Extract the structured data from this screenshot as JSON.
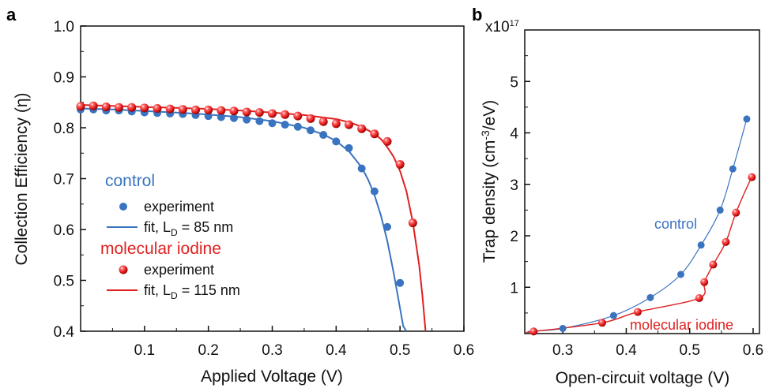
{
  "colors": {
    "control": "#3a73c0",
    "iodine": "#e02020",
    "axis": "#111111"
  },
  "chart_data": [
    {
      "panel": "a",
      "type": "scatter",
      "xlabel": "Applied Voltage (V)",
      "ylabel": "Collection Efficiency (η)",
      "xlim": [
        0,
        0.6
      ],
      "ylim": [
        0.4,
        1.0
      ],
      "xticks": [
        "0.1",
        "0.2",
        "0.3",
        "0.4",
        "0.5",
        "0.6"
      ],
      "yticks": [
        "0.4",
        "0.5",
        "0.6",
        "0.7",
        "0.8",
        "0.9",
        "1.0"
      ],
      "legend": {
        "control_title": "control",
        "iodine_title": "molecular iodine",
        "experiment_label": "experiment",
        "fit_prefix": "fit, L",
        "fit_subscript": "D",
        "control_fit_value": " = 85 nm",
        "iodine_fit_value": " = 115 nm"
      },
      "series": [
        {
          "name": "control experiment",
          "x": [
            0.0,
            0.02,
            0.04,
            0.06,
            0.08,
            0.1,
            0.12,
            0.14,
            0.16,
            0.18,
            0.2,
            0.22,
            0.24,
            0.26,
            0.28,
            0.3,
            0.32,
            0.34,
            0.36,
            0.38,
            0.4,
            0.42,
            0.44,
            0.46,
            0.48,
            0.5
          ],
          "y": [
            0.836,
            0.836,
            0.834,
            0.834,
            0.832,
            0.83,
            0.829,
            0.828,
            0.827,
            0.825,
            0.823,
            0.821,
            0.819,
            0.816,
            0.813,
            0.809,
            0.806,
            0.802,
            0.795,
            0.786,
            0.773,
            0.76,
            0.72,
            0.675,
            0.605,
            0.495
          ]
        },
        {
          "name": "molecular iodine experiment",
          "x": [
            0.0,
            0.02,
            0.04,
            0.06,
            0.08,
            0.1,
            0.12,
            0.14,
            0.16,
            0.18,
            0.2,
            0.22,
            0.24,
            0.26,
            0.28,
            0.3,
            0.32,
            0.34,
            0.36,
            0.38,
            0.4,
            0.42,
            0.44,
            0.46,
            0.48,
            0.5,
            0.52
          ],
          "y": [
            0.842,
            0.843,
            0.841,
            0.84,
            0.84,
            0.839,
            0.838,
            0.837,
            0.836,
            0.835,
            0.835,
            0.834,
            0.833,
            0.831,
            0.83,
            0.828,
            0.826,
            0.823,
            0.818,
            0.812,
            0.808,
            0.806,
            0.798,
            0.788,
            0.773,
            0.728,
            0.613
          ]
        },
        {
          "name": "fit, LD = 85 nm",
          "x": [
            0.0,
            0.05,
            0.1,
            0.15,
            0.2,
            0.25,
            0.3,
            0.35,
            0.38,
            0.4,
            0.42,
            0.44,
            0.45,
            0.46,
            0.47,
            0.48,
            0.49,
            0.5,
            0.505,
            0.51
          ],
          "y": [
            0.838,
            0.836,
            0.833,
            0.83,
            0.826,
            0.821,
            0.813,
            0.8,
            0.787,
            0.774,
            0.754,
            0.722,
            0.698,
            0.668,
            0.628,
            0.578,
            0.515,
            0.445,
            0.41,
            0.4
          ]
        },
        {
          "name": "fit, LD = 115 nm",
          "x": [
            0.0,
            0.05,
            0.1,
            0.15,
            0.2,
            0.25,
            0.3,
            0.35,
            0.4,
            0.42,
            0.44,
            0.46,
            0.47,
            0.48,
            0.49,
            0.5,
            0.51,
            0.52,
            0.53,
            0.535,
            0.54
          ],
          "y": [
            0.845,
            0.843,
            0.841,
            0.839,
            0.837,
            0.834,
            0.83,
            0.825,
            0.817,
            0.811,
            0.802,
            0.788,
            0.778,
            0.762,
            0.743,
            0.715,
            0.675,
            0.615,
            0.53,
            0.47,
            0.4
          ]
        }
      ]
    },
    {
      "panel": "b",
      "type": "scatter",
      "xlabel": "Open-circuit voltage (V)",
      "ylabel": "Trap density (cm⁻³/eV)",
      "ylabel_parts": {
        "pre": "Trap density (cm",
        "sup": "-3",
        "post": "/eV)"
      },
      "multiplier": {
        "base": "x10",
        "exp": "17"
      },
      "xlim": [
        0.24,
        0.61
      ],
      "ylim": [
        0.1,
        6.0
      ],
      "xticks": [
        "0.3",
        "0.4",
        "0.5",
        "0.6"
      ],
      "yticks": [
        "1",
        "2",
        "3",
        "4",
        "5"
      ],
      "annotations": {
        "control": "control",
        "iodine": "molecular iodine"
      },
      "series": [
        {
          "name": "control",
          "x": [
            0.254,
            0.3,
            0.38,
            0.438,
            0.486,
            0.518,
            0.548,
            0.568,
            0.59
          ],
          "y": [
            0.15,
            0.2,
            0.45,
            0.8,
            1.25,
            1.82,
            2.5,
            3.3,
            4.27
          ]
        },
        {
          "name": "molecular iodine",
          "x": [
            0.254,
            0.362,
            0.418,
            0.515,
            0.523,
            0.537,
            0.557,
            0.573,
            0.598
          ],
          "y": [
            0.14,
            0.31,
            0.52,
            0.79,
            1.1,
            1.44,
            1.88,
            2.45,
            3.14
          ]
        }
      ]
    }
  ]
}
